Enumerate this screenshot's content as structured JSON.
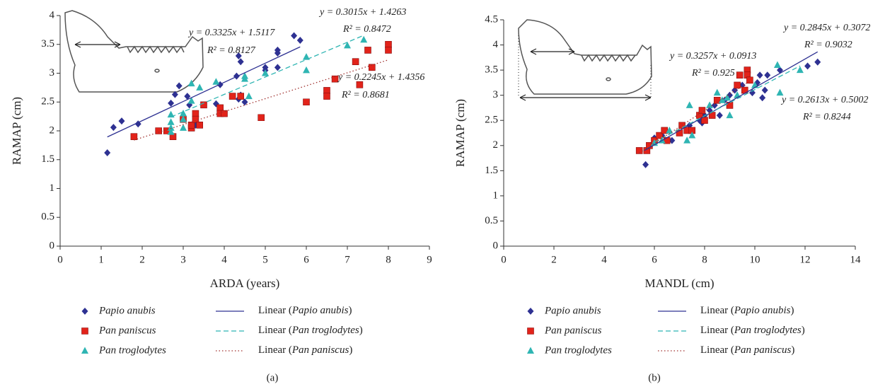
{
  "chart_data": [
    {
      "type": "scatter",
      "caption": "(a)",
      "x_label": "ARDA (years)",
      "y_label": "RAMAP (cm)",
      "xlim": [
        0,
        9
      ],
      "xticks": [
        0,
        1,
        2,
        3,
        4,
        5,
        6,
        7,
        8,
        9
      ],
      "ylim": [
        0,
        4
      ],
      "yticks": [
        0,
        0.5,
        1,
        1.5,
        2,
        2.5,
        3,
        3.5,
        4
      ],
      "series": [
        {
          "name": "Papio anubis",
          "color": "#2e3192",
          "marker": "diamond",
          "x": [
            1.15,
            1.3,
            1.5,
            1.9,
            2.7,
            2.8,
            2.9,
            3.1,
            3.15,
            3.3,
            3.9,
            3.8,
            4.3,
            4.35,
            4.4,
            4.4,
            4.5,
            4.35,
            5,
            5,
            5.3,
            5.3,
            5.3,
            5.7,
            5.85
          ],
          "values": [
            1.62,
            2.06,
            2.17,
            2.12,
            2.48,
            2.63,
            2.78,
            2.6,
            2.45,
            2.1,
            2.8,
            2.47,
            2.95,
            3.3,
            3.2,
            2.62,
            2.5,
            2.55,
            3.05,
            3.1,
            3.4,
            3.35,
            3.1,
            3.65,
            3.57
          ]
        },
        {
          "name": "Pan paniscus",
          "color": "#e2231a",
          "marker": "square",
          "x": [
            1.8,
            2.4,
            2.6,
            2.75,
            3,
            3.2,
            3.2,
            3.3,
            3.3,
            3.4,
            3.5,
            3.9,
            3.9,
            4,
            4.2,
            4.4,
            4.9,
            6,
            6.5,
            6.5,
            6.7,
            7.2,
            7.3,
            7.5,
            7.6,
            8,
            8
          ],
          "values": [
            1.9,
            2,
            2,
            1.9,
            2.2,
            2.05,
            2.1,
            2.3,
            2.2,
            2.1,
            2.45,
            2.4,
            2.3,
            2.3,
            2.6,
            2.6,
            2.23,
            2.5,
            2.7,
            2.6,
            2.9,
            3.2,
            2.8,
            3.4,
            3.1,
            3.5,
            3.4
          ]
        },
        {
          "name": "Pan troglodytes",
          "color": "#2fb5b3",
          "marker": "triangle",
          "x": [
            2.7,
            2.7,
            2.7,
            2.7,
            3,
            3,
            3,
            3.2,
            3.2,
            3.4,
            3.8,
            4.5,
            4.5,
            4.6,
            5,
            6,
            6,
            7,
            7.4
          ],
          "values": [
            2.28,
            2.15,
            2.05,
            1.98,
            2.3,
            2.05,
            2.2,
            2.82,
            2.52,
            2.75,
            2.85,
            2.9,
            2.95,
            2.6,
            3,
            3.28,
            3.05,
            3.48,
            3.58
          ]
        }
      ],
      "trendlines": [
        {
          "name": "Linear (Papio anubis)",
          "color": "#2e3192",
          "dash": "solid",
          "slope": 0.3325,
          "intercept": 1.5117,
          "x": [
            1.15,
            5.85
          ],
          "equation": "y = 0.3325x + 1.5117",
          "r2": "R² = 0.8127"
        },
        {
          "name": "Linear (Pan troglodytes)",
          "color": "#2fb5b3",
          "dash": "dashed",
          "slope": 0.3015,
          "intercept": 1.4263,
          "x": [
            2.7,
            7.4
          ],
          "equation": "y = 0.3015x + 1.4263",
          "r2": "R² = 0.8472"
        },
        {
          "name": "Linear (Pan paniscus)",
          "color": "#a0302e",
          "dash": "dotted",
          "slope": 0.2245,
          "intercept": 1.4356,
          "x": [
            1.8,
            8
          ],
          "equation": "y = 0.2245x + 1.4356",
          "r2": "R² = 0.8681"
        }
      ]
    },
    {
      "type": "scatter",
      "caption": "(b)",
      "x_label": "MANDL (cm)",
      "y_label": "RAMAP (cm)",
      "xlim": [
        0,
        14
      ],
      "xticks": [
        0,
        2,
        4,
        6,
        8,
        10,
        12,
        14
      ],
      "ylim": [
        0,
        4.5
      ],
      "yticks": [
        0,
        0.5,
        1,
        1.5,
        2,
        2.5,
        3,
        3.5,
        4,
        4.5
      ],
      "series": [
        {
          "name": "Papio anubis",
          "color": "#2e3192",
          "marker": "diamond",
          "x": [
            5.65,
            6,
            6.3,
            6.7,
            7.4,
            7.8,
            7.9,
            8,
            8.2,
            8.4,
            8.6,
            8.8,
            9,
            9.2,
            9.5,
            9.8,
            9.9,
            10.1,
            10.2,
            10.3,
            10.5,
            11,
            12.1,
            12.5,
            10.4
          ],
          "values": [
            1.62,
            2.15,
            2.2,
            2.1,
            2.4,
            2.5,
            2.45,
            2.6,
            2.7,
            2.8,
            2.6,
            2.9,
            3,
            3.1,
            3.2,
            3.3,
            3.05,
            3.25,
            3.4,
            2.95,
            3.4,
            3.5,
            3.58,
            3.66,
            3.1
          ]
        },
        {
          "name": "Pan paniscus",
          "color": "#e2231a",
          "marker": "square",
          "x": [
            5.4,
            5.7,
            5.8,
            6,
            6.2,
            6.4,
            6.5,
            7,
            7.1,
            7.3,
            7.5,
            7.8,
            7.9,
            8,
            8.3,
            8.5,
            9,
            9.3,
            9.4,
            9.6,
            9.7,
            9.7,
            9.8
          ],
          "values": [
            1.9,
            1.9,
            2,
            2.1,
            2.2,
            2.3,
            2.1,
            2.25,
            2.4,
            2.3,
            2.3,
            2.6,
            2.7,
            2.5,
            2.6,
            2.9,
            2.8,
            3.2,
            3.4,
            3.1,
            3.5,
            3.4,
            3.3
          ]
        },
        {
          "name": "Pan troglodytes",
          "color": "#2fb5b3",
          "marker": "triangle",
          "x": [
            6,
            6.3,
            6.6,
            7.3,
            7.4,
            7.5,
            8.2,
            8.5,
            8.7,
            9,
            9.3,
            10,
            10.9,
            11,
            11.8,
            8.9
          ],
          "values": [
            2.05,
            2.1,
            2.3,
            2.1,
            2.8,
            2.2,
            2.8,
            3.05,
            2.9,
            2.6,
            3,
            3.2,
            3.6,
            3.05,
            3.5,
            2.95
          ]
        }
      ],
      "trendlines": [
        {
          "name": "Linear (Papio anubis)",
          "color": "#2e3192",
          "dash": "solid",
          "slope": 0.2845,
          "intercept": 0.3072,
          "x": [
            5.6,
            12.5
          ],
          "equation": "y = 0.2845x + 0.3072",
          "r2": "R² = 0.9032"
        },
        {
          "name": "Linear (Pan troglodytes)",
          "color": "#2fb5b3",
          "dash": "dashed",
          "slope": 0.2613,
          "intercept": 0.5002,
          "x": [
            6,
            11.8
          ],
          "equation": "y = 0.2613x + 0.5002",
          "r2": "R² = 0.8244"
        },
        {
          "name": "Linear (Pan paniscus)",
          "color": "#a0302e",
          "dash": "dotted",
          "slope": 0.3257,
          "intercept": 0.0913,
          "x": [
            5.4,
            9.8
          ],
          "equation": "y = 0.3257x + 0.0913",
          "r2": "R² = 0.925"
        }
      ]
    }
  ]
}
